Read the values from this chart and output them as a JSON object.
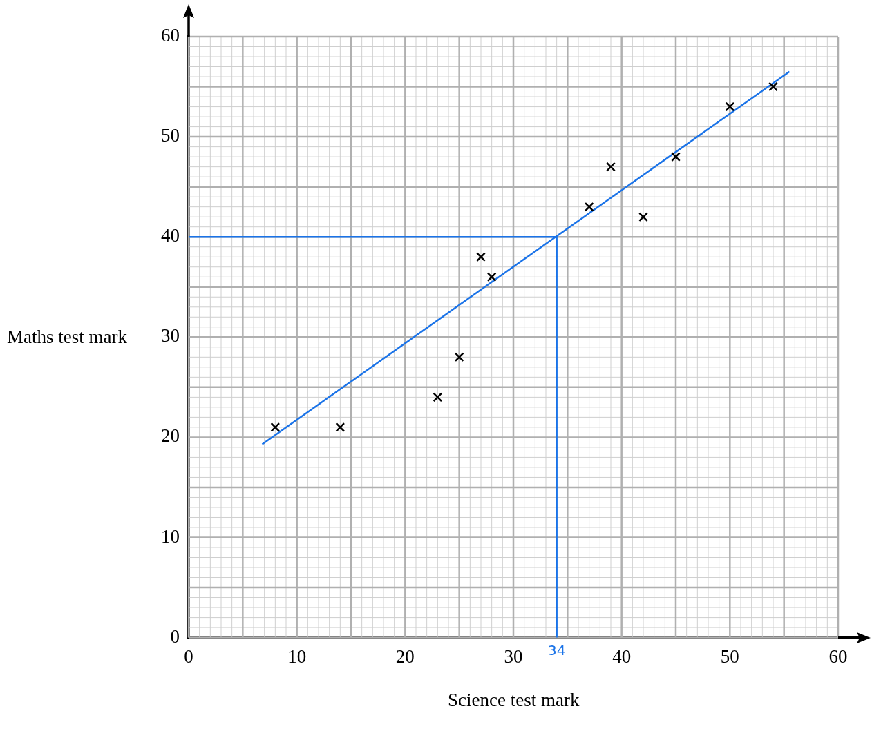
{
  "chart_data": {
    "type": "scatter",
    "xlabel": "Science test mark",
    "ylabel": "Maths test mark",
    "xlim": [
      0,
      60
    ],
    "ylim": [
      0,
      60
    ],
    "xticks": [
      0,
      10,
      20,
      30,
      40,
      50,
      60
    ],
    "yticks": [
      0,
      10,
      20,
      30,
      40,
      50,
      60
    ],
    "grid": true,
    "legend": false,
    "series": [
      {
        "marker": "cross",
        "color": "#000000",
        "x": [
          8,
          14,
          23,
          25,
          27,
          28,
          37,
          39,
          42,
          45,
          50,
          54
        ],
        "values": [
          21,
          21,
          24,
          28,
          38,
          36,
          43,
          47,
          42,
          48,
          53,
          55
        ]
      },
      {
        "type": "line",
        "marker": "none",
        "color": "#1a73e8",
        "x": [
          6.8,
          55.5
        ],
        "values": [
          19.3,
          56.5
        ]
      }
    ],
    "ref_lines": [
      {
        "axis": "x",
        "value": 34,
        "label": "34",
        "color": "#1a73e8"
      },
      {
        "axis": "y",
        "value": 40,
        "color": "#1a73e8"
      }
    ]
  }
}
